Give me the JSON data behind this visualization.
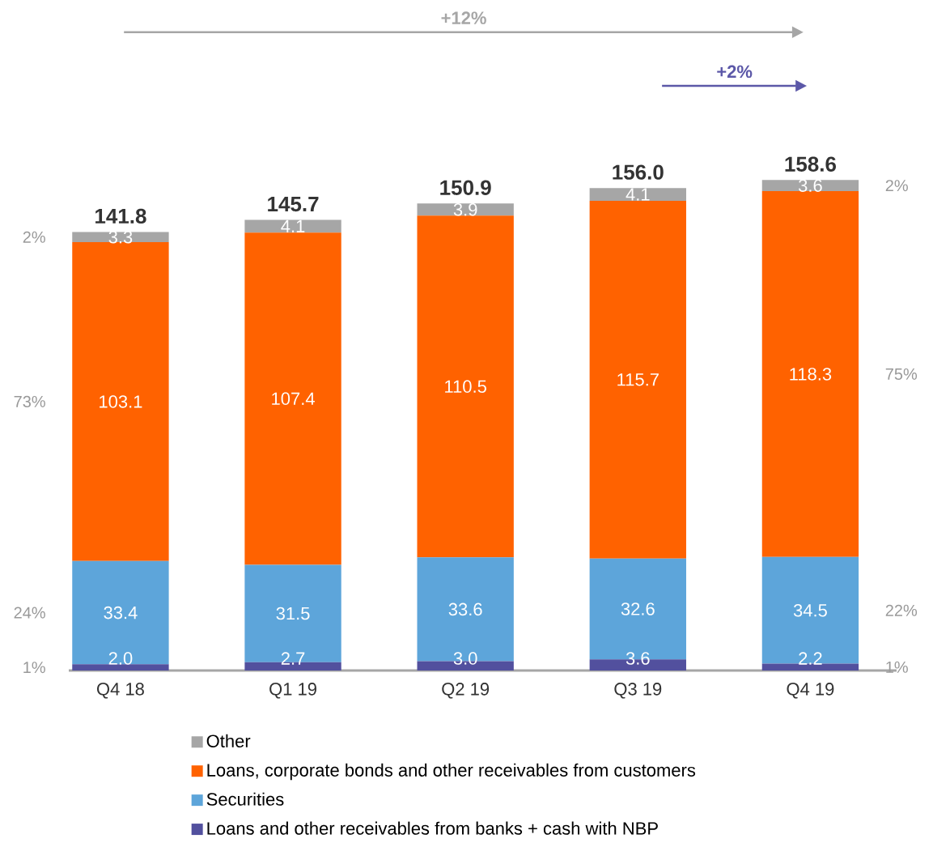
{
  "chart_data": {
    "type": "bar",
    "stacked": true,
    "categories": [
      "Q4 18",
      "Q1 19",
      "Q2 19",
      "Q3 19",
      "Q4 19"
    ],
    "series": [
      {
        "name": "Loans and other receivables from banks + cash with NBP",
        "color": "#52509e",
        "values": [
          2.0,
          2.7,
          3.0,
          3.6,
          2.2
        ],
        "value_labels": [
          "2.0",
          "2.7",
          "3.0",
          "3.6",
          "2.2"
        ]
      },
      {
        "name": "Securities",
        "color": "#5da5da",
        "values": [
          33.4,
          31.5,
          33.6,
          32.6,
          34.5
        ],
        "value_labels": [
          "33.4",
          "31.5",
          "33.6",
          "32.6",
          "34.5"
        ]
      },
      {
        "name": "Loans, corporate bonds and other receivables from customers",
        "color": "#ff6200",
        "values": [
          103.1,
          107.4,
          110.5,
          115.7,
          118.3
        ],
        "value_labels": [
          "103.1",
          "107.4",
          "110.5",
          "115.7",
          "118.3"
        ]
      },
      {
        "name": "Other",
        "color": "#a6a6a6",
        "values": [
          3.3,
          4.1,
          3.9,
          4.1,
          3.6
        ],
        "value_labels": [
          "3.3",
          "4.1",
          "3.9",
          "4.1",
          "3.6"
        ]
      }
    ],
    "totals": [
      "141.8",
      "145.7",
      "150.9",
      "156.0",
      "158.6"
    ],
    "annotations": [
      "+12%",
      "+2%",
      "2%",
      "73%",
      "24%",
      "1%",
      "2%",
      "75%",
      "22%",
      "1%"
    ],
    "tick_labels": "x",
    "grid": false,
    "legend": "bottom"
  }
}
